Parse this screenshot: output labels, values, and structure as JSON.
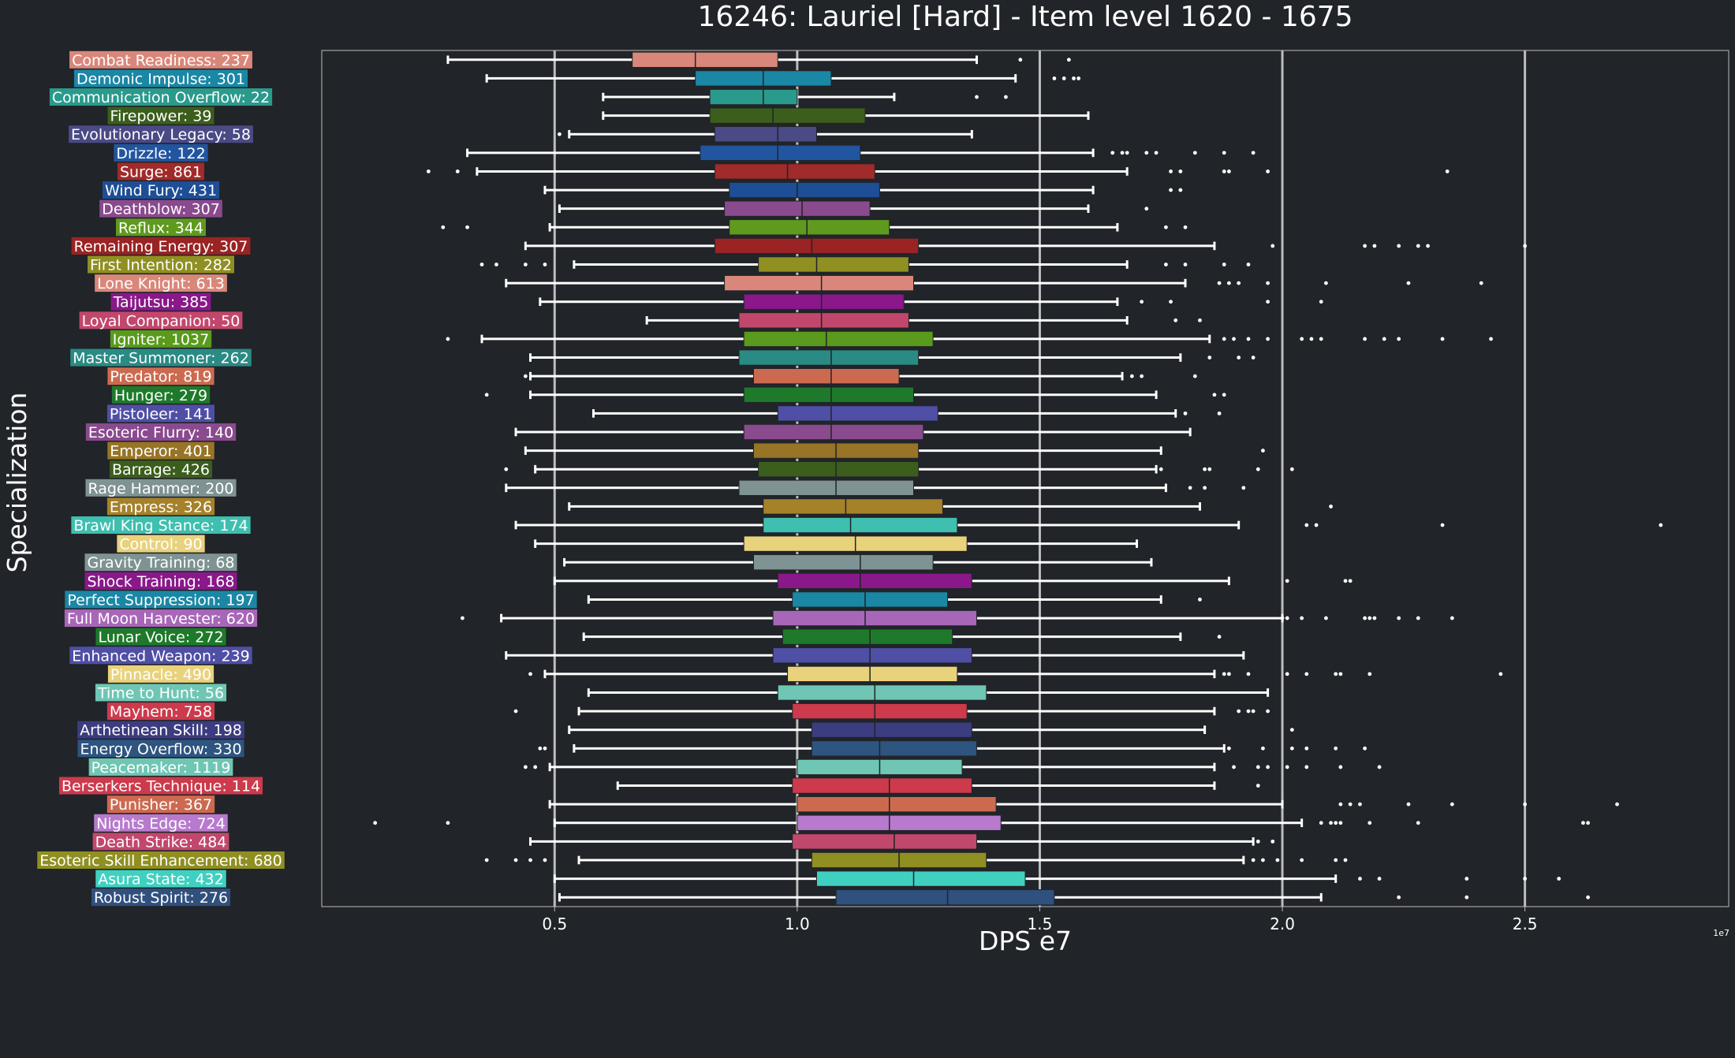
{
  "chart_data": {
    "type": "boxplot",
    "title": "16246: Lauriel [Hard] - Item level 1620 - 1675",
    "xlabel": "DPS e7",
    "ylabel": "Specialization",
    "x_scale_note": "1e7",
    "xlim": [
      0.02,
      2.92
    ],
    "xticks": [
      0.5,
      1.0,
      1.5,
      2.0,
      2.5
    ],
    "xtick_labels": [
      "0.5",
      "1.0",
      "1.5",
      "2.0",
      "2.5"
    ],
    "grid": "vertical",
    "colors": {
      "background": "#212428",
      "text": "#ffffff",
      "grid": "#bdbdbd",
      "whisker": "#ffffff"
    },
    "series": [
      {
        "label": "Combat Readiness: 237",
        "color": "#d9877a",
        "whislo": 0.28,
        "q1": 0.66,
        "med": 0.79,
        "q3": 0.96,
        "whishi": 1.37,
        "fliers": [
          1.46,
          1.56
        ]
      },
      {
        "label": "Demonic Impulse: 301",
        "color": "#1a87a5",
        "whislo": 0.36,
        "q1": 0.79,
        "med": 0.93,
        "q3": 1.07,
        "whishi": 1.45,
        "fliers": [
          1.53,
          1.55,
          1.57,
          1.58
        ]
      },
      {
        "label": "Communication Overflow: 22",
        "color": "#2a9a8c",
        "whislo": 0.6,
        "q1": 0.82,
        "med": 0.93,
        "q3": 1.0,
        "whishi": 1.2,
        "fliers": [
          1.37,
          1.43
        ]
      },
      {
        "label": "Firepower: 39",
        "color": "#3b5e1c",
        "whislo": 0.6,
        "q1": 0.82,
        "med": 0.95,
        "q3": 1.14,
        "whishi": 1.6,
        "fliers": []
      },
      {
        "label": "Evolutionary Legacy: 58",
        "color": "#4a4a85",
        "whislo": 0.53,
        "q1": 0.83,
        "med": 0.96,
        "q3": 1.04,
        "whishi": 1.36,
        "fliers": [
          0.51
        ]
      },
      {
        "label": "Drizzle: 122",
        "color": "#2255a0",
        "whislo": 0.32,
        "q1": 0.8,
        "med": 0.96,
        "q3": 1.13,
        "whishi": 1.61,
        "fliers": [
          1.65,
          1.67,
          1.68,
          1.72,
          1.74,
          1.82,
          1.88,
          1.94
        ]
      },
      {
        "label": "Surge: 861",
        "color": "#a12a2a",
        "whislo": 0.34,
        "q1": 0.83,
        "med": 0.98,
        "q3": 1.16,
        "whishi": 1.68,
        "fliers": [
          0.24,
          0.3,
          1.77,
          1.79,
          1.88,
          1.89,
          1.97,
          2.34
        ]
      },
      {
        "label": "Wind Fury: 431",
        "color": "#1d4e96",
        "whislo": 0.48,
        "q1": 0.86,
        "med": 1.0,
        "q3": 1.17,
        "whishi": 1.61,
        "fliers": [
          1.77,
          1.79
        ]
      },
      {
        "label": "Deathblow: 307",
        "color": "#8a4a8e",
        "whislo": 0.51,
        "q1": 0.85,
        "med": 1.01,
        "q3": 1.15,
        "whishi": 1.6,
        "fliers": [
          1.72
        ]
      },
      {
        "label": "Reflux: 344",
        "color": "#5f9a1e",
        "whislo": 0.49,
        "q1": 0.86,
        "med": 1.02,
        "q3": 1.19,
        "whishi": 1.66,
        "fliers": [
          0.27,
          0.32,
          1.76,
          1.8
        ]
      },
      {
        "label": "Remaining Energy: 307",
        "color": "#9a2323",
        "whislo": 0.44,
        "q1": 0.83,
        "med": 1.03,
        "q3": 1.25,
        "whishi": 1.86,
        "fliers": [
          1.98,
          2.17,
          2.19,
          2.24,
          2.28,
          2.3,
          2.5
        ]
      },
      {
        "label": "First Intention: 282",
        "color": "#8f8f22",
        "whislo": 0.54,
        "q1": 0.92,
        "med": 1.04,
        "q3": 1.23,
        "whishi": 1.68,
        "fliers": [
          0.35,
          0.38,
          0.44,
          0.48,
          1.76,
          1.8,
          1.88,
          1.93
        ]
      },
      {
        "label": "Lone Knight: 613",
        "color": "#d9877a",
        "whislo": 0.4,
        "q1": 0.85,
        "med": 1.05,
        "q3": 1.24,
        "whishi": 1.8,
        "fliers": [
          1.87,
          1.89,
          1.91,
          1.97,
          2.09,
          2.26,
          2.41
        ]
      },
      {
        "label": "Taijutsu: 385",
        "color": "#8a188a",
        "whislo": 0.47,
        "q1": 0.89,
        "med": 1.05,
        "q3": 1.22,
        "whishi": 1.66,
        "fliers": [
          1.71,
          1.77,
          1.97,
          2.08
        ]
      },
      {
        "label": "Loyal Companion: 50",
        "color": "#c2476c",
        "whislo": 0.69,
        "q1": 0.88,
        "med": 1.05,
        "q3": 1.23,
        "whishi": 1.68,
        "fliers": [
          1.78,
          1.83
        ]
      },
      {
        "label": "Igniter: 1037",
        "color": "#5a9a1c",
        "whislo": 0.35,
        "q1": 0.89,
        "med": 1.06,
        "q3": 1.28,
        "whishi": 1.85,
        "fliers": [
          0.28,
          1.88,
          1.9,
          1.93,
          1.97,
          2.04,
          2.06,
          2.08,
          2.17,
          2.21,
          2.24,
          2.33,
          2.43
        ]
      },
      {
        "label": "Master Summoner: 262",
        "color": "#2a8a84",
        "whislo": 0.45,
        "q1": 0.88,
        "med": 1.07,
        "q3": 1.25,
        "whishi": 1.79,
        "fliers": [
          1.85,
          1.91,
          1.94
        ]
      },
      {
        "label": "Predator: 819",
        "color": "#cc6a50",
        "whislo": 0.45,
        "q1": 0.91,
        "med": 1.07,
        "q3": 1.21,
        "whishi": 1.67,
        "fliers": [
          0.44,
          1.69,
          1.71,
          1.82
        ]
      },
      {
        "label": "Hunger: 279",
        "color": "#1e7a2a",
        "whislo": 0.45,
        "q1": 0.89,
        "med": 1.07,
        "q3": 1.24,
        "whishi": 1.74,
        "fliers": [
          0.36,
          1.86,
          1.88
        ]
      },
      {
        "label": "Pistoleer: 141",
        "color": "#4f4fa5",
        "whislo": 0.58,
        "q1": 0.96,
        "med": 1.07,
        "q3": 1.29,
        "whishi": 1.78,
        "fliers": [
          1.8,
          1.87
        ]
      },
      {
        "label": "Esoteric Flurry: 140",
        "color": "#8a4a8e",
        "whislo": 0.42,
        "q1": 0.89,
        "med": 1.07,
        "q3": 1.26,
        "whishi": 1.81,
        "fliers": []
      },
      {
        "label": "Emperor: 401",
        "color": "#977426",
        "whislo": 0.44,
        "q1": 0.91,
        "med": 1.08,
        "q3": 1.25,
        "whishi": 1.75,
        "fliers": [
          1.96
        ]
      },
      {
        "label": "Barrage: 426",
        "color": "#3b5e1c",
        "whislo": 0.46,
        "q1": 0.92,
        "med": 1.08,
        "q3": 1.25,
        "whishi": 1.74,
        "fliers": [
          0.4,
          1.75,
          1.84,
          1.85,
          1.95,
          2.02
        ]
      },
      {
        "label": "Rage Hammer: 200",
        "color": "#7f9294",
        "whislo": 0.4,
        "q1": 0.88,
        "med": 1.08,
        "q3": 1.24,
        "whishi": 1.76,
        "fliers": [
          1.81,
          1.84,
          1.92
        ]
      },
      {
        "label": "Empress: 326",
        "color": "#a5812a",
        "whislo": 0.53,
        "q1": 0.93,
        "med": 1.1,
        "q3": 1.3,
        "whishi": 1.83,
        "fliers": [
          2.1
        ]
      },
      {
        "label": "Brawl King Stance: 174",
        "color": "#3fbfaf",
        "whislo": 0.42,
        "q1": 0.93,
        "med": 1.11,
        "q3": 1.33,
        "whishi": 1.91,
        "fliers": [
          2.05,
          2.07,
          2.33,
          2.78
        ]
      },
      {
        "label": "Control: 90",
        "color": "#e8d27c",
        "whislo": 0.46,
        "q1": 0.89,
        "med": 1.12,
        "q3": 1.35,
        "whishi": 1.7,
        "fliers": []
      },
      {
        "label": "Gravity Training: 68",
        "color": "#7f9294",
        "whislo": 0.52,
        "q1": 0.91,
        "med": 1.13,
        "q3": 1.28,
        "whishi": 1.73,
        "fliers": []
      },
      {
        "label": "Shock Training: 168",
        "color": "#8a188a",
        "whislo": 0.5,
        "q1": 0.96,
        "med": 1.13,
        "q3": 1.36,
        "whishi": 1.89,
        "fliers": [
          2.01,
          2.13,
          2.14
        ]
      },
      {
        "label": "Perfect Suppression: 197",
        "color": "#1a87a5",
        "whislo": 0.57,
        "q1": 0.99,
        "med": 1.14,
        "q3": 1.31,
        "whishi": 1.75,
        "fliers": [
          1.83
        ]
      },
      {
        "label": "Full Moon Harvester: 620",
        "color": "#a866b8",
        "whislo": 0.39,
        "q1": 0.95,
        "med": 1.14,
        "q3": 1.37,
        "whishi": 2.0,
        "fliers": [
          0.31,
          2.0,
          2.01,
          2.04,
          2.09,
          2.17,
          2.18,
          2.19,
          2.24,
          2.28,
          2.35
        ]
      },
      {
        "label": "Lunar Voice: 272",
        "color": "#1e7a2a",
        "whislo": 0.56,
        "q1": 0.97,
        "med": 1.15,
        "q3": 1.32,
        "whishi": 1.79,
        "fliers": [
          1.87
        ]
      },
      {
        "label": "Enhanced Weapon: 239",
        "color": "#4f4fa5",
        "whislo": 0.4,
        "q1": 0.95,
        "med": 1.15,
        "q3": 1.36,
        "whishi": 1.92,
        "fliers": []
      },
      {
        "label": "Pinnacle: 490",
        "color": "#e8d27c",
        "whislo": 0.48,
        "q1": 0.98,
        "med": 1.15,
        "q3": 1.33,
        "whishi": 1.86,
        "fliers": [
          0.45,
          1.88,
          1.89,
          1.93,
          2.01,
          2.05,
          2.11,
          2.12,
          2.18,
          2.45
        ]
      },
      {
        "label": "Time to Hunt: 56",
        "color": "#6fc6b4",
        "whislo": 0.57,
        "q1": 0.96,
        "med": 1.16,
        "q3": 1.39,
        "whishi": 1.97,
        "fliers": []
      },
      {
        "label": "Mayhem: 758",
        "color": "#cc3a4c",
        "whislo": 0.55,
        "q1": 0.99,
        "med": 1.16,
        "q3": 1.35,
        "whishi": 1.86,
        "fliers": [
          0.42,
          1.91,
          1.93,
          1.94,
          1.97
        ]
      },
      {
        "label": "Arthetinean Skill: 198",
        "color": "#3c3c80",
        "whislo": 0.53,
        "q1": 1.03,
        "med": 1.16,
        "q3": 1.36,
        "whishi": 1.84,
        "fliers": [
          2.02
        ]
      },
      {
        "label": "Energy Overflow: 330",
        "color": "#2e5480",
        "whislo": 0.54,
        "q1": 1.03,
        "med": 1.17,
        "q3": 1.37,
        "whishi": 1.88,
        "fliers": [
          0.47,
          0.48,
          1.89,
          1.96,
          2.02,
          2.05,
          2.11,
          2.17
        ]
      },
      {
        "label": "Peacemaker: 1119",
        "color": "#6fc6b4",
        "whislo": 0.49,
        "q1": 1.0,
        "med": 1.17,
        "q3": 1.34,
        "whishi": 1.86,
        "fliers": [
          0.44,
          0.46,
          1.9,
          1.95,
          1.97,
          2.01,
          2.05,
          2.12,
          2.2
        ]
      },
      {
        "label": "Berserkers Technique: 114",
        "color": "#cc3a4c",
        "whislo": 0.63,
        "q1": 0.99,
        "med": 1.19,
        "q3": 1.36,
        "whishi": 1.86,
        "fliers": [
          1.95
        ]
      },
      {
        "label": "Punisher: 367",
        "color": "#cc6a50",
        "whislo": 0.49,
        "q1": 1.0,
        "med": 1.19,
        "q3": 1.41,
        "whishi": 2.0,
        "fliers": [
          2.12,
          2.14,
          2.16,
          2.26,
          2.35,
          2.5,
          2.69
        ]
      },
      {
        "label": "Nights Edge: 724",
        "color": "#b77acc",
        "whislo": 0.5,
        "q1": 1.0,
        "med": 1.19,
        "q3": 1.42,
        "whishi": 2.04,
        "fliers": [
          0.13,
          0.28,
          2.08,
          2.1,
          2.11,
          2.12,
          2.18,
          2.28,
          2.62,
          2.63
        ]
      },
      {
        "label": "Death Strike: 484",
        "color": "#c2476c",
        "whislo": 0.45,
        "q1": 0.99,
        "med": 1.2,
        "q3": 1.37,
        "whishi": 1.94,
        "fliers": [
          1.95,
          1.98
        ]
      },
      {
        "label": "Esoteric Skill Enhancement: 680",
        "color": "#8f8f22",
        "whislo": 0.55,
        "q1": 1.03,
        "med": 1.21,
        "q3": 1.39,
        "whishi": 1.92,
        "fliers": [
          0.36,
          0.42,
          0.45,
          0.48,
          1.94,
          1.96,
          1.99,
          2.04,
          2.11,
          2.13
        ]
      },
      {
        "label": "Asura State: 432",
        "color": "#40d0c0",
        "whislo": 0.5,
        "q1": 1.04,
        "med": 1.24,
        "q3": 1.47,
        "whishi": 2.11,
        "fliers": [
          2.16,
          2.2,
          2.38,
          2.5,
          2.57
        ]
      },
      {
        "label": "Robust Spirit: 276",
        "color": "#30507e",
        "whislo": 0.51,
        "q1": 1.08,
        "med": 1.31,
        "q3": 1.53,
        "whishi": 2.08,
        "fliers": [
          2.24,
          2.38,
          2.63
        ]
      }
    ]
  }
}
